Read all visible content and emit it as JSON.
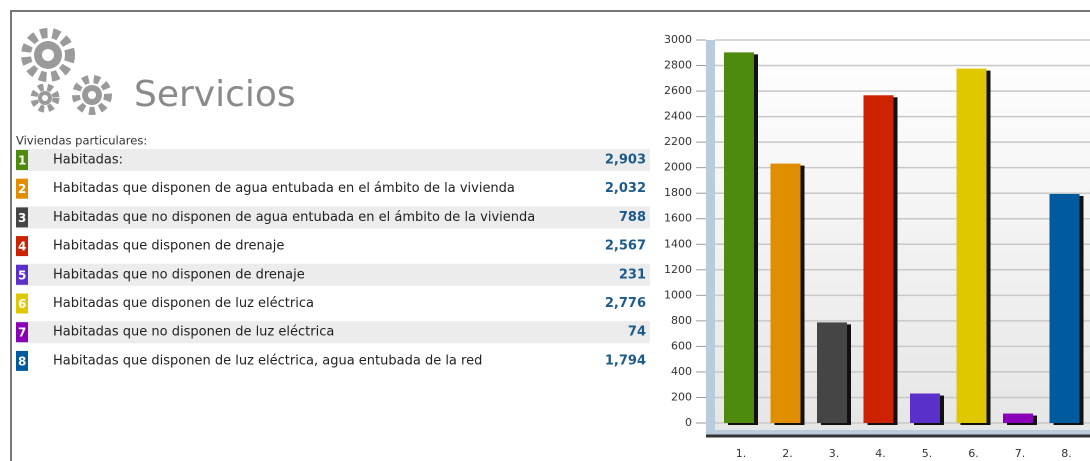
{
  "header": {
    "title": "Servicios"
  },
  "table": {
    "caption": "Viviendas particulares:",
    "rows": [
      {
        "number": "1",
        "label": "Habitadas:"
      },
      {
        "number": "2",
        "label": "Habitadas que disponen de agua entubada en el ámbito de la vivienda"
      },
      {
        "number": "3",
        "label": "Habitadas que no disponen de agua entubada en el ámbito de la vivienda"
      },
      {
        "number": "4",
        "label": "Habitadas que disponen de drenaje"
      },
      {
        "number": "5",
        "label": "Habitadas que no disponen de drenaje"
      },
      {
        "number": "6",
        "label": "Habitadas que disponen de luz eléctrica"
      },
      {
        "number": "7",
        "label": "Habitadas que no disponen de luz eléctrica"
      },
      {
        "number": "8",
        "label": "Habitadas que disponen de luz eléctrica, agua entubada de la red"
      }
    ]
  },
  "chart_data": {
    "type": "bar",
    "categories": [
      "1.",
      "2.",
      "3.",
      "4.",
      "5.",
      "6.",
      "7.",
      "8."
    ],
    "values": [
      2903,
      2032,
      788,
      2567,
      231,
      2776,
      74,
      1794
    ],
    "value_labels": [
      "2,903",
      "2,032",
      "788",
      "2,567",
      "231",
      "2,776",
      "74",
      "1,794"
    ],
    "colors": [
      "#4e8a0e",
      "#e08e00",
      "#454545",
      "#cc2200",
      "#5b2fc9",
      "#e0c800",
      "#8a00b8",
      "#005a9e"
    ],
    "ylim": [
      0,
      3000
    ],
    "yticks": [
      0,
      200,
      400,
      600,
      800,
      1000,
      1200,
      1400,
      1600,
      1800,
      2000,
      2200,
      2400,
      2600,
      2800,
      3000
    ],
    "grid": true
  }
}
